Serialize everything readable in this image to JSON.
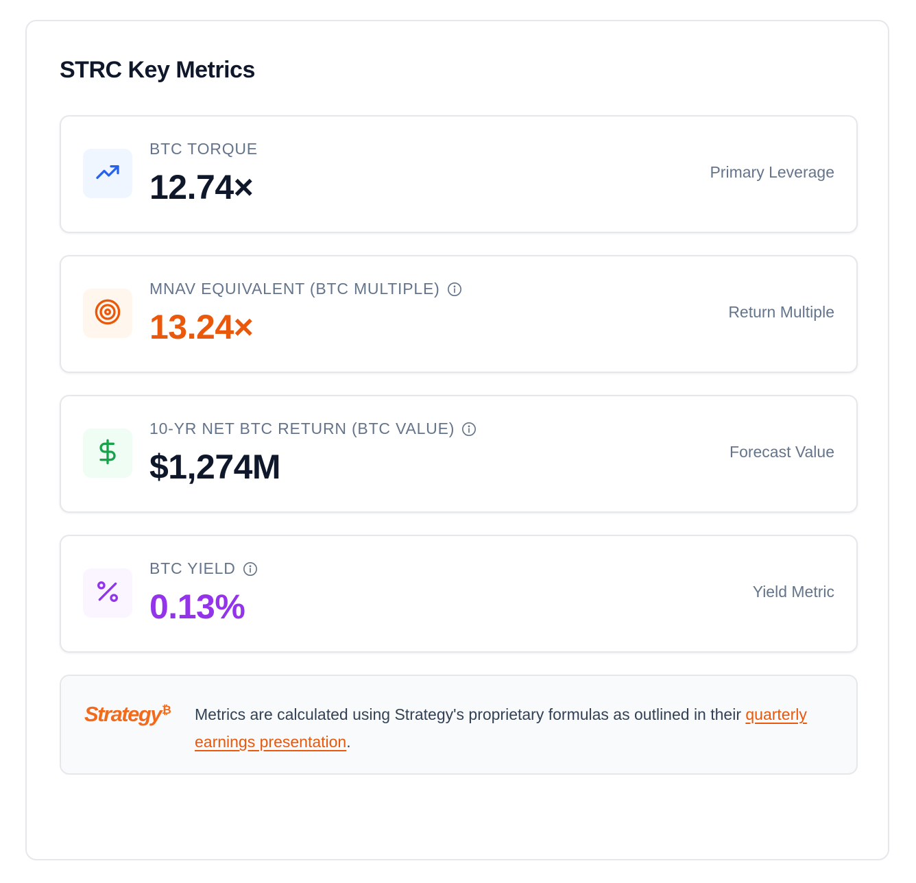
{
  "panel": {
    "title": "STRC Key Metrics"
  },
  "metrics": [
    {
      "label": "BTC TORQUE",
      "value": "12.74×",
      "note": "Primary Leverage",
      "icon": "trending-up-icon",
      "color": "#0f172a",
      "accent": "#2563eb",
      "bg": "#eff6ff",
      "info": false
    },
    {
      "label": "MNAV EQUIVALENT (BTC MULTIPLE)",
      "value": "13.24×",
      "note": "Return Multiple",
      "icon": "target-icon",
      "color": "#ea580c",
      "accent": "#ea580c",
      "bg": "#fff7ed",
      "info": true
    },
    {
      "label": "10-YR NET BTC RETURN (BTC VALUE)",
      "value": "$1,274M",
      "note": "Forecast Value",
      "icon": "dollar-sign-icon",
      "color": "#0f172a",
      "accent": "#16a34a",
      "bg": "#f0fdf4",
      "info": true
    },
    {
      "label": "BTC YIELD",
      "value": "0.13%",
      "note": "Yield Metric",
      "icon": "percent-icon",
      "color": "#9333ea",
      "accent": "#9333ea",
      "bg": "#faf5ff",
      "info": true
    }
  ],
  "footer": {
    "logo_text": "Strategy",
    "logo_mark": "₿",
    "text_before": "Metrics are calculated using Strategy's proprietary formulas as outlined in their ",
    "link_text": "quarterly earnings presentation",
    "text_after": "."
  }
}
